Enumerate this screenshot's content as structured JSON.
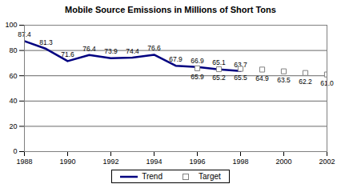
{
  "chart_data": {
    "type": "line",
    "title": "Mobile Source Emissions in Millions of Short Tons",
    "x": [
      1988,
      1989,
      1990,
      1991,
      1992,
      1993,
      1994,
      1995,
      1996,
      1997,
      1998,
      1999,
      2000,
      2001,
      2002
    ],
    "series": [
      {
        "name": "Trend",
        "type": "line",
        "color": "#000080",
        "line_style": "solid",
        "values": [
          87.4,
          81.3,
          71.6,
          76.4,
          73.9,
          74.4,
          76.6,
          67.9,
          66.9,
          65.1,
          63.7,
          null,
          null,
          null,
          null
        ]
      },
      {
        "name": "Target",
        "type": "scatter",
        "color": "#808080",
        "marker": "square",
        "values": [
          null,
          null,
          null,
          null,
          null,
          null,
          null,
          null,
          65.9,
          65.2,
          65.5,
          64.9,
          63.5,
          62.2,
          61.0
        ],
        "value_labels": [
          null,
          null,
          null,
          null,
          null,
          null,
          null,
          null,
          "65.9",
          "65.2",
          "65.5",
          "64.9",
          "63.5",
          "62.2",
          "61.0"
        ]
      }
    ],
    "xlim": [
      1988,
      2002
    ],
    "xticks": [
      1988,
      1990,
      1992,
      1994,
      1996,
      1998,
      2000,
      2002
    ],
    "ylim": [
      0,
      100
    ],
    "yticks": [
      0,
      20,
      40,
      60,
      80,
      100
    ],
    "grid": true,
    "legend": "bottom",
    "data_labels": true
  }
}
